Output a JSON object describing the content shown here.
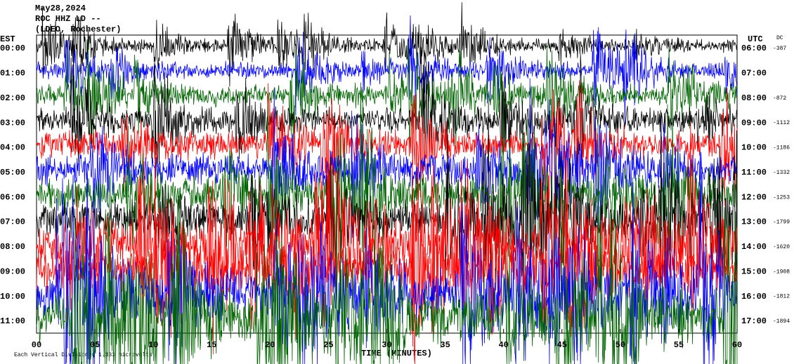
{
  "chart_data": {
    "type": "helicorder",
    "title": "May28,2024",
    "subtitle": "ROC HHZ LD --",
    "source": "(LDEO, Rochester)",
    "left_axis_label": "EST",
    "right_axis_label": "UTC",
    "dc_label": "DC",
    "categories": [
      "00:00",
      "01:00",
      "02:00",
      "03:00",
      "04:00",
      "05:00",
      "06:00",
      "07:00",
      "08:00",
      "09:00",
      "10:00",
      "11:00"
    ],
    "right_categories": [
      "06:00",
      "07:00",
      "08:00",
      "09:00",
      "10:00",
      "11:00",
      "12:00",
      "13:00",
      "14:00",
      "15:00",
      "16:00",
      "17:00"
    ],
    "dc_values": [
      -387,
      null,
      -872,
      -1112,
      -1186,
      -1332,
      -1253,
      -1799,
      -1620,
      -1908,
      -1812,
      -1894
    ],
    "colors": [
      "#000000",
      "#0000ff",
      "#006400",
      "#000000",
      "#ff0000",
      "#0000ff",
      "#006400",
      "#000000",
      "#ff0000",
      "#ff0000",
      "#0000ff",
      "#006400"
    ],
    "xlim": [
      0,
      60
    ],
    "xticks": [
      {
        "value": 0,
        "label": "00"
      },
      {
        "value": 5,
        "label": "05"
      },
      10,
      15,
      20,
      25,
      30,
      35,
      40,
      45,
      50,
      55,
      60
    ],
    "xlabel": "TIME (MINUTES)",
    "footnote": "Each Vertical Division = 1.333 microvolts"
  }
}
